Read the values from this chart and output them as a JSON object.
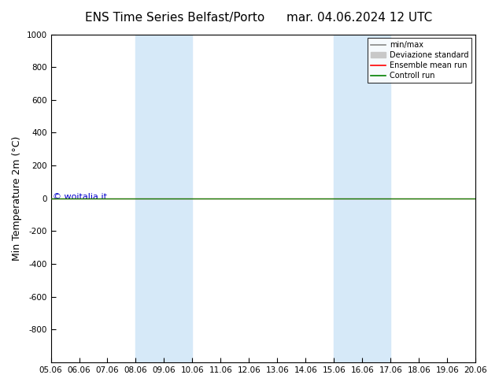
{
  "title_left": "ENS Time Series Belfast/Porto",
  "title_right": "mar. 04.06.2024 12 UTC",
  "ylabel": "Min Temperature 2m (°C)",
  "ylim_top": -1000,
  "ylim_bottom": 1000,
  "yticks": [
    -800,
    -600,
    -400,
    -200,
    0,
    200,
    400,
    600,
    800,
    1000
  ],
  "xtick_labels": [
    "05.06",
    "06.06",
    "07.06",
    "08.06",
    "09.06",
    "10.06",
    "11.06",
    "12.06",
    "13.06",
    "14.06",
    "15.06",
    "16.06",
    "17.06",
    "18.06",
    "19.06",
    "20.06"
  ],
  "shaded_regions": [
    {
      "xmin": 3.0,
      "xmax": 5.0,
      "color": "#d6e9f8"
    },
    {
      "xmin": 10.0,
      "xmax": 12.0,
      "color": "#d6e9f8"
    }
  ],
  "control_run_y": 0,
  "control_run_color": "#008000",
  "ensemble_mean_color": "#ff0000",
  "minmax_color": "#888888",
  "std_color": "#c8c8c8",
  "watermark": "© woitalia.it",
  "watermark_color": "#0000cc",
  "background_color": "#ffffff",
  "plot_bg_color": "#ffffff",
  "font_size": 9,
  "title_font_size": 11
}
